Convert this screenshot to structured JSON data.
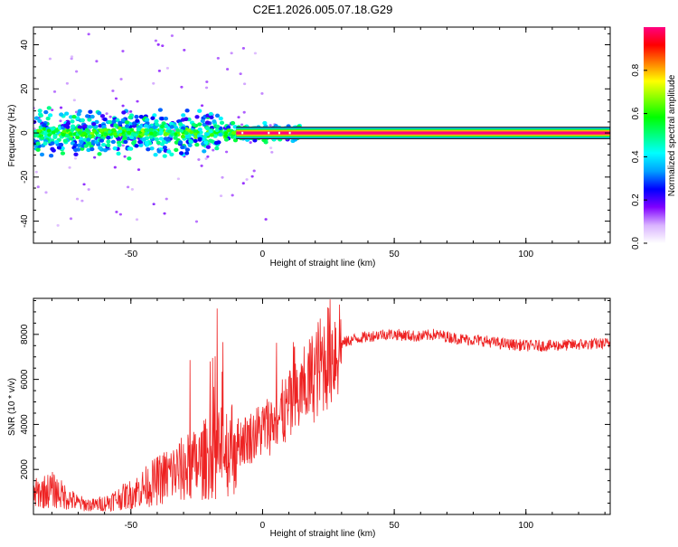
{
  "title": "C2E1.2026.005.07.18.G29",
  "chart_data": [
    {
      "type": "heatmap",
      "id": "spectrogram",
      "title": "C2E1.2026.005.07.18.G29",
      "xlabel": "Height of straight line (km)",
      "ylabel": "Frequency (Hz)",
      "xlim": [
        -87,
        132
      ],
      "ylim": [
        -50,
        48
      ],
      "x_ticks": [
        -50,
        0,
        50,
        100
      ],
      "y_ticks": [
        -40,
        -20,
        0,
        20,
        40
      ],
      "colorbar": {
        "label": "Normalized spectral amplitude",
        "range": [
          0,
          1
        ],
        "ticks": [
          "0.0",
          "0.2",
          "0.4",
          "0.6",
          "0.8"
        ],
        "colormap": [
          "#ffffff",
          "#d9b3ff",
          "#8000ff",
          "#0000ff",
          "#00a0ff",
          "#00ffff",
          "#00ff80",
          "#00ff00",
          "#80ff00",
          "#ffff00",
          "#ff8000",
          "#ff0000",
          "#ff0080"
        ]
      },
      "signal_band": {
        "x_start": -10,
        "x_end": 132,
        "freq_center": 0,
        "half_width": 1.5,
        "amplitude": 1.0
      },
      "scatter_region": {
        "x_start": -87,
        "x_end": 15,
        "freq_spread": 6
      }
    },
    {
      "type": "line",
      "id": "snr",
      "xlabel": "Height of straight line (km)",
      "ylabel": "SNR (10 * v/v)",
      "xlim": [
        -87,
        132
      ],
      "ylim": [
        0,
        9600
      ],
      "x_ticks": [
        -50,
        0,
        50,
        100
      ],
      "y_ticks": [
        2000,
        4000,
        6000,
        8000
      ],
      "line_color": "#ee2222",
      "envelope": {
        "x": [
          -87,
          -80,
          -75,
          -70,
          -65,
          -60,
          -55,
          -50,
          -45,
          -40,
          -35,
          -30,
          -25,
          -20,
          -15,
          -10,
          -5,
          0,
          5,
          10,
          15,
          20,
          25,
          30,
          35,
          40,
          45,
          50,
          55,
          60,
          65,
          70,
          75,
          80,
          85,
          90,
          95,
          100,
          110,
          120,
          132
        ],
        "y": [
          900,
          1100,
          800,
          500,
          400,
          500,
          700,
          900,
          1200,
          1500,
          1800,
          2000,
          2200,
          2600,
          2800,
          3200,
          3400,
          3800,
          4200,
          4700,
          5400,
          6300,
          7100,
          7600,
          7800,
          7900,
          8000,
          8000,
          7950,
          7900,
          8000,
          7900,
          7800,
          7750,
          7700,
          7600,
          7550,
          7500,
          7500,
          7550,
          7600
        ]
      }
    }
  ]
}
